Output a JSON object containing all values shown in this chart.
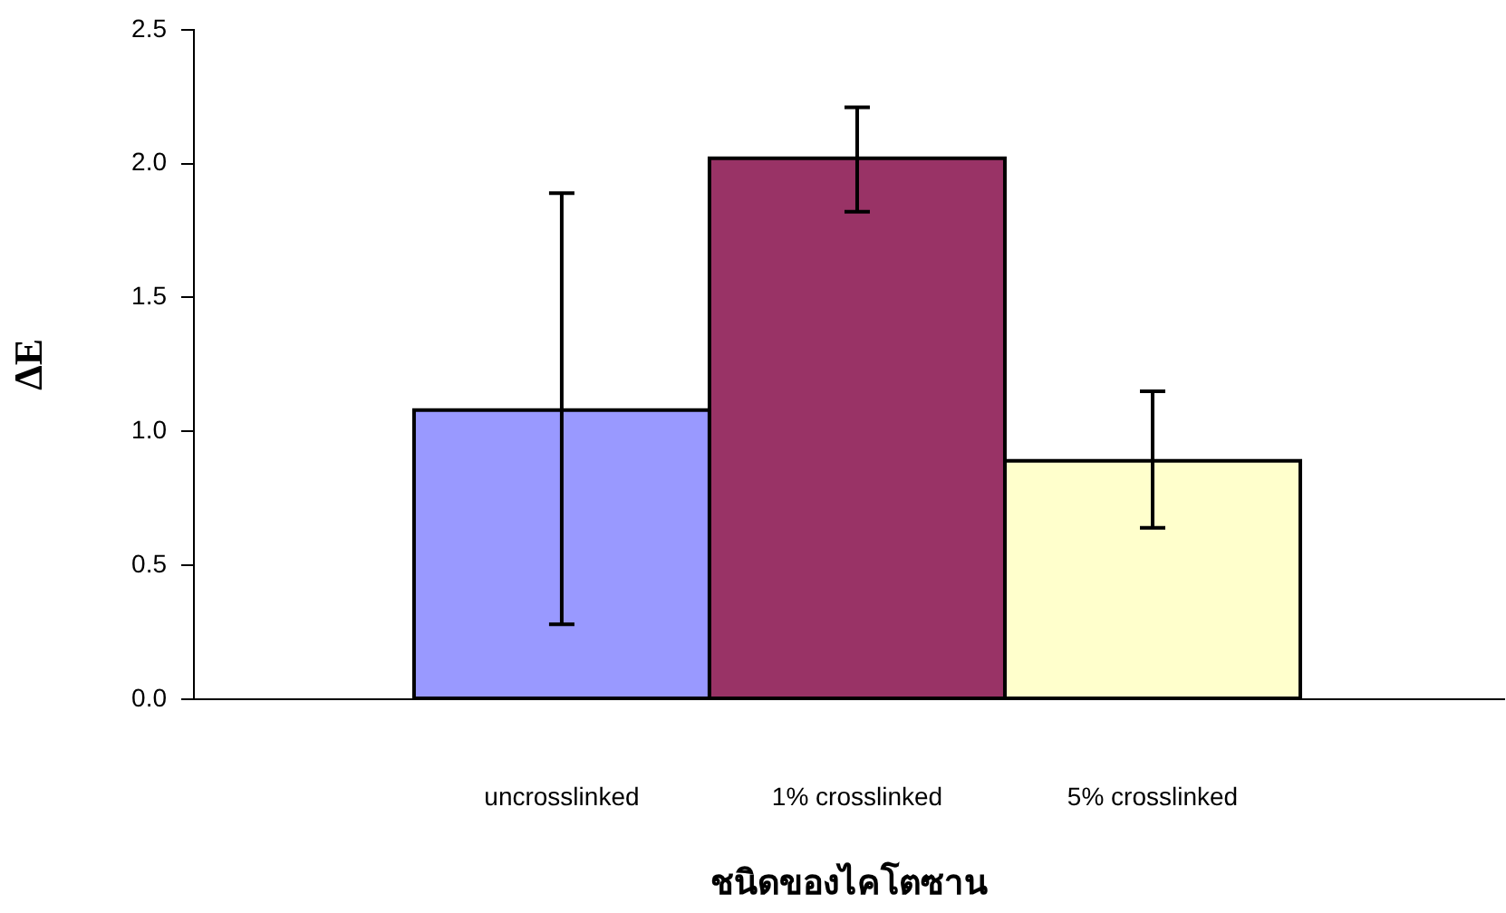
{
  "chart_data": {
    "type": "bar",
    "xlabel": "ชนิดของไคโตซาน",
    "ylabel": "ΔE",
    "categories": [
      "uncrosslinked",
      "1% crosslinked",
      "5% crosslinked"
    ],
    "values": [
      1.08,
      2.02,
      0.89
    ],
    "colors": [
      "#9999ff",
      "#993366",
      "#ffffcc"
    ],
    "errors": [
      [
        0.28,
        1.89
      ],
      [
        1.82,
        2.21
      ],
      [
        0.64,
        1.15
      ]
    ],
    "ylim": [
      0,
      2.5
    ],
    "yticks": [
      {
        "value": 0,
        "label": "0.0"
      },
      0.5,
      {
        "value": 1,
        "label": "1.0"
      },
      1.5,
      {
        "value": 2,
        "label": "2.0"
      },
      2.5
    ]
  }
}
